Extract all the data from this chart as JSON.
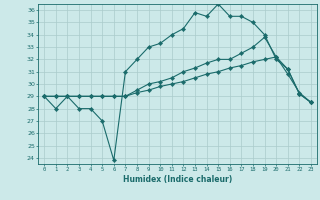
{
  "xlabel": "Humidex (Indice chaleur)",
  "bg_color": "#cce9e9",
  "line_color": "#1a6b6b",
  "grid_color": "#aacccc",
  "xlim": [
    -0.5,
    23.5
  ],
  "ylim": [
    23.5,
    36.5
  ],
  "xticks": [
    0,
    1,
    2,
    3,
    4,
    5,
    6,
    7,
    8,
    9,
    10,
    11,
    12,
    13,
    14,
    15,
    16,
    17,
    18,
    19,
    20,
    21,
    22,
    23
  ],
  "yticks": [
    24,
    25,
    26,
    27,
    28,
    29,
    30,
    31,
    32,
    33,
    34,
    35,
    36
  ],
  "line1_x": [
    0,
    1,
    2,
    3,
    4,
    5,
    6,
    7,
    8,
    9,
    10,
    11,
    12,
    13,
    14,
    15,
    16,
    17,
    18,
    19,
    20,
    21,
    22,
    23
  ],
  "line1_y": [
    29,
    28,
    29,
    28,
    28,
    27,
    23.8,
    31,
    32,
    33,
    33.3,
    34,
    34.5,
    35.8,
    35.5,
    36.5,
    35.5,
    35.5,
    35,
    34,
    32,
    31.2,
    29.2,
    28.5
  ],
  "line2_x": [
    0,
    1,
    2,
    3,
    4,
    5,
    6,
    7,
    8,
    9,
    10,
    11,
    12,
    13,
    14,
    15,
    16,
    17,
    18,
    19,
    20,
    21,
    22,
    23
  ],
  "line2_y": [
    29,
    29,
    29,
    29,
    29,
    29,
    29,
    29,
    29.5,
    30,
    30.2,
    30.5,
    31,
    31.3,
    31.7,
    32,
    32,
    32.5,
    33,
    33.8,
    32.2,
    31.2,
    29.2,
    28.5
  ],
  "line3_x": [
    0,
    1,
    2,
    3,
    4,
    5,
    6,
    7,
    8,
    9,
    10,
    11,
    12,
    13,
    14,
    15,
    16,
    17,
    18,
    19,
    20,
    21,
    22,
    23
  ],
  "line3_y": [
    29,
    29,
    29,
    29,
    29,
    29,
    29,
    29,
    29.3,
    29.5,
    29.8,
    30,
    30.2,
    30.5,
    30.8,
    31,
    31.3,
    31.5,
    31.8,
    32,
    32.2,
    30.8,
    29.3,
    28.5
  ]
}
